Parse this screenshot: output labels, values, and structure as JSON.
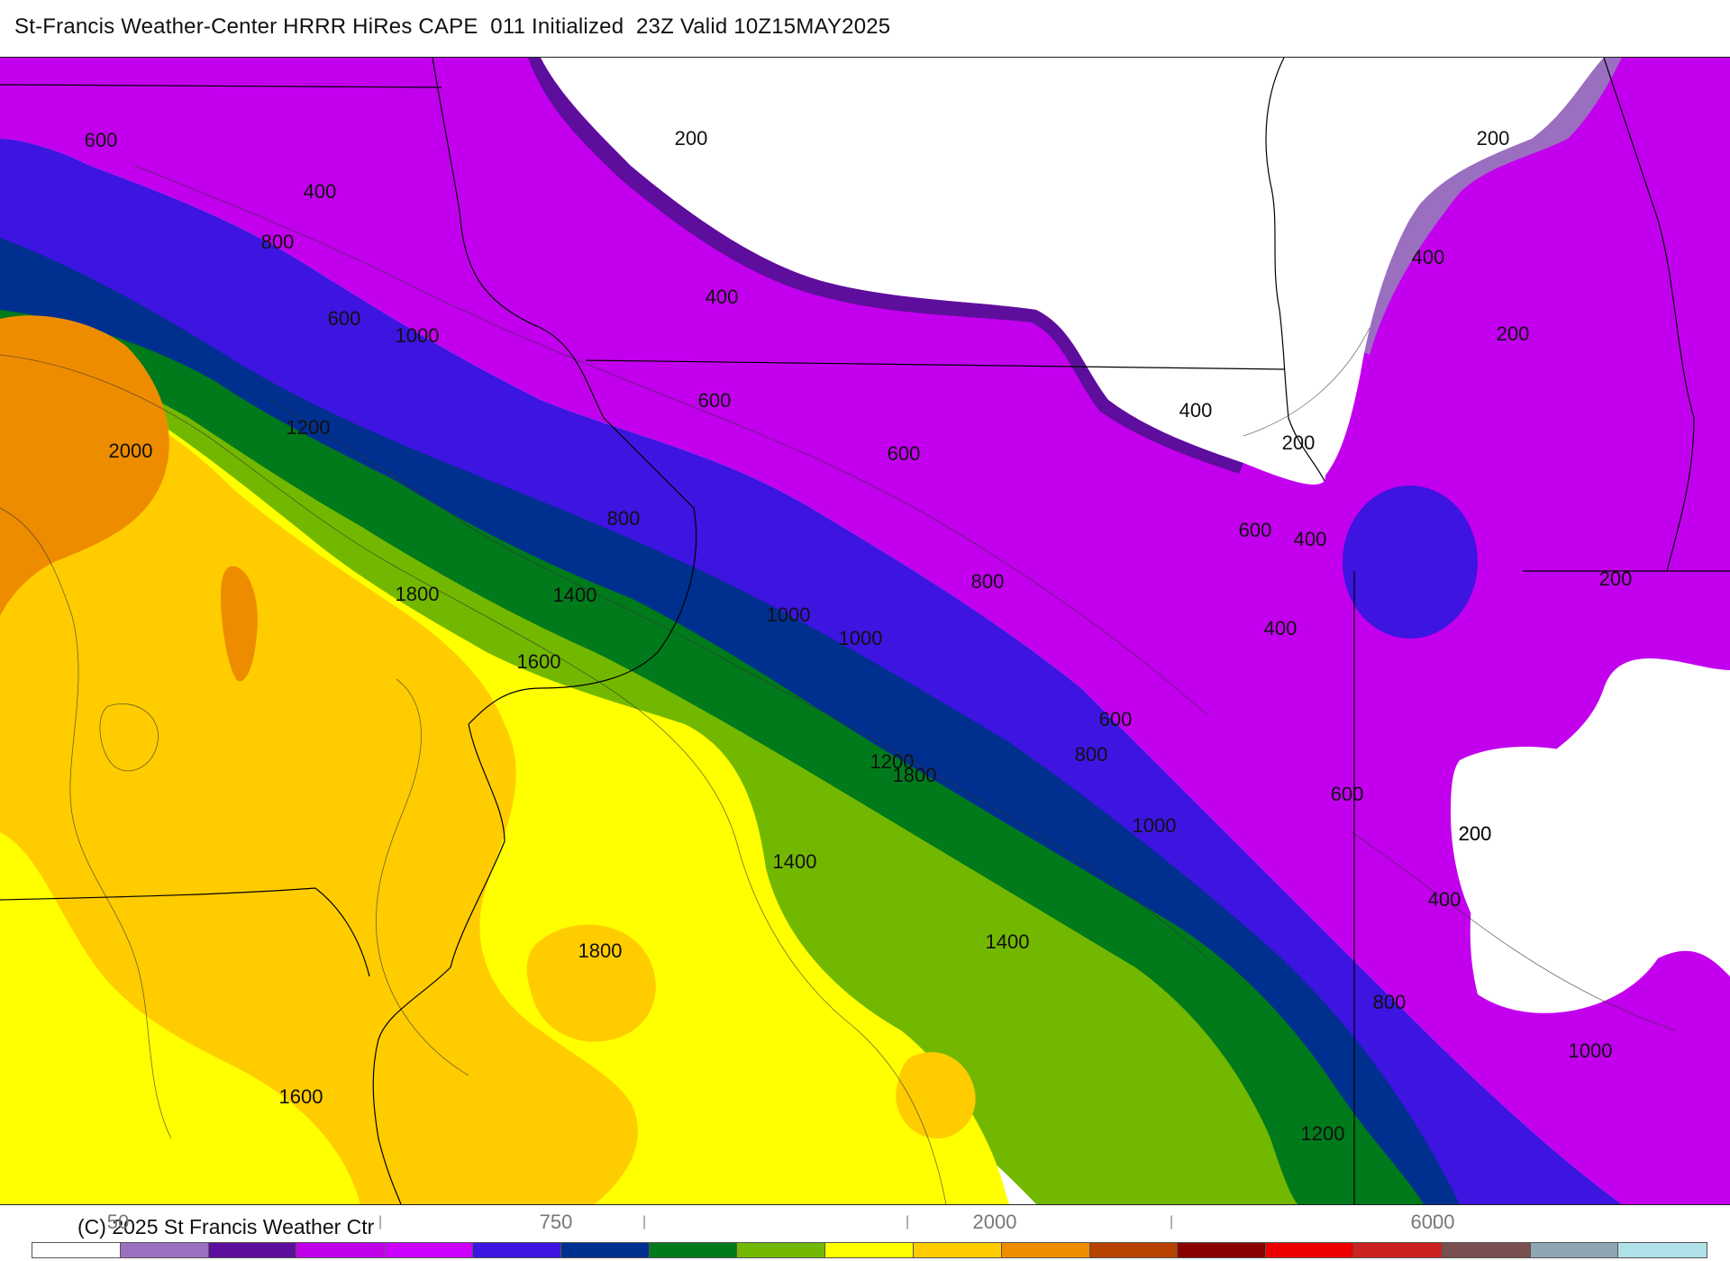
{
  "title": "St-Francis Weather-Center HRRR HiRes CAPE  011 Initialized  23Z Valid 10Z15MAY2025",
  "copyright": "(C) 2025 St Francis Weather Ctr",
  "colorbar": {
    "colors": [
      "#ffffff",
      "#9b6fc0",
      "#5e0e9c",
      "#bf00e8",
      "#cc00ff",
      "#3d14e0",
      "#00308f",
      "#007a1a",
      "#73b800",
      "#ffff00",
      "#ffcc00",
      "#ee8c00",
      "#b84200",
      "#8b0000",
      "#ee0000",
      "#cc2222",
      "#7a5050",
      "#8fa6b2",
      "#b0e0e8"
    ],
    "tick_labels": [
      "50",
      "750",
      "2000",
      "6000"
    ]
  },
  "contour_labels": [
    {
      "text": "600"
    },
    {
      "text": "400"
    },
    {
      "text": "800"
    },
    {
      "text": "600"
    },
    {
      "text": "1000"
    },
    {
      "text": "1200"
    },
    {
      "text": "2000"
    },
    {
      "text": "800"
    },
    {
      "text": "1800"
    },
    {
      "text": "1400"
    },
    {
      "text": "1600"
    },
    {
      "text": "1000"
    },
    {
      "text": "1000"
    },
    {
      "text": "1200"
    },
    {
      "text": "1400"
    },
    {
      "text": "1800"
    },
    {
      "text": "1800"
    },
    {
      "text": "1600"
    },
    {
      "text": "200"
    },
    {
      "text": "400"
    },
    {
      "text": "600"
    },
    {
      "text": "600"
    },
    {
      "text": "800"
    },
    {
      "text": "400"
    },
    {
      "text": "200"
    },
    {
      "text": "600"
    },
    {
      "text": "400"
    },
    {
      "text": "400"
    },
    {
      "text": "200"
    },
    {
      "text": "200"
    },
    {
      "text": "400"
    },
    {
      "text": "200"
    },
    {
      "text": "200"
    },
    {
      "text": "600"
    },
    {
      "text": "800"
    },
    {
      "text": "1000"
    },
    {
      "text": "600"
    },
    {
      "text": "200"
    },
    {
      "text": "400"
    },
    {
      "text": "800"
    },
    {
      "text": "1000"
    },
    {
      "text": "1400"
    },
    {
      "text": "1200"
    }
  ],
  "legend_colors": {
    "white": "#ffffff",
    "lavender": "#9b6fc0",
    "dark_purple": "#5e0e9c",
    "magenta": "#c200ee",
    "blue": "#3d14e0",
    "navy": "#00308f",
    "dark_green": "#007a1a",
    "green": "#73b800",
    "yellow": "#ffff00",
    "gold": "#ffcc00",
    "orange": "#ee8c00"
  }
}
